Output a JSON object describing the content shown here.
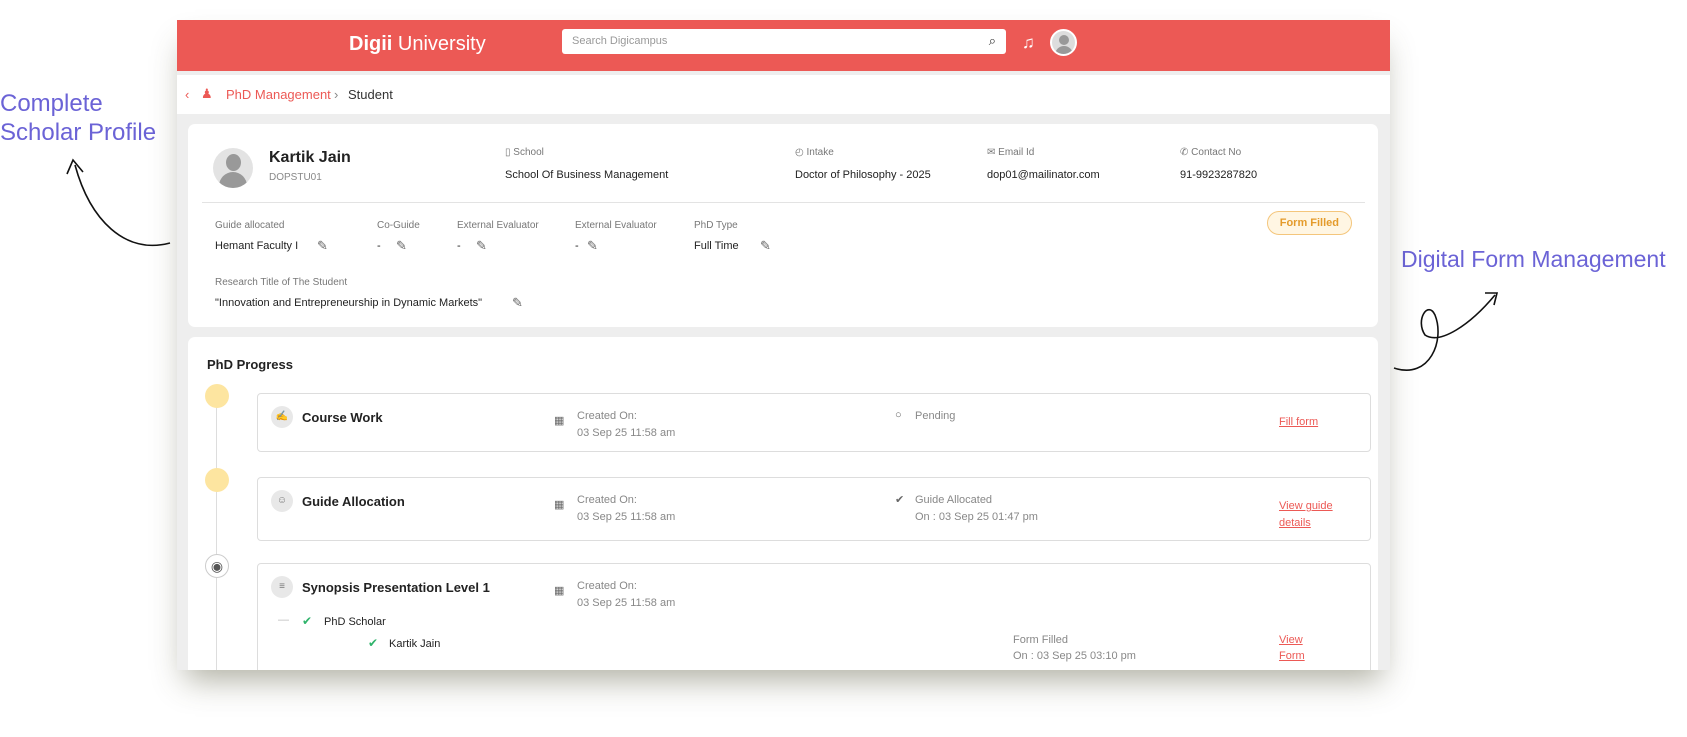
{
  "annotations": {
    "left": "Complete Scholar Profile",
    "right": "Digital Form Management"
  },
  "header": {
    "logo_bold": "Digii",
    "logo_rest": " University",
    "search_placeholder": "Search Digicampus"
  },
  "breadcrumb": {
    "back": "‹",
    "items": [
      "PhD Management",
      "Student"
    ],
    "separator": "›"
  },
  "profile": {
    "name": "Kartik Jain",
    "id": "DOPSTU01",
    "fields": [
      {
        "label": "School",
        "value": "School Of Business Management"
      },
      {
        "label": "Intake",
        "value": "Doctor of Philosophy - 2025"
      },
      {
        "label": "Email Id",
        "value": "dop01@mailinator.com"
      },
      {
        "label": "Contact No",
        "value": "91-9923287820"
      }
    ],
    "assignments": [
      {
        "label": "Guide allocated",
        "value": "Hemant Faculty I"
      },
      {
        "label": "Co-Guide",
        "value": "-"
      },
      {
        "label": "External Evaluator",
        "value": "-"
      },
      {
        "label": "External Evaluator",
        "value": "-"
      },
      {
        "label": "PhD Type",
        "value": "Full Time"
      }
    ],
    "research_label": "Research Title of The Student",
    "research_title": "\"Innovation and Entrepreneurship in Dynamic Markets\"",
    "status_badge": "Form Filled"
  },
  "progress": {
    "title": "PhD Progress",
    "steps": [
      {
        "title": "Course Work",
        "created_label": "Created On:",
        "created": "03 Sep 25 11:58 am",
        "status": "Pending",
        "status_sub": "",
        "action": "Fill form"
      },
      {
        "title": "Guide Allocation",
        "created_label": "Created On:",
        "created": "03 Sep 25 11:58 am",
        "status": "Guide Allocated",
        "status_sub": "On : 03 Sep 25 01:47 pm",
        "action": "View guide details"
      },
      {
        "title": "Synopsis Presentation Level 1",
        "created_label": "Created On:",
        "created": "03 Sep 25 11:58 am",
        "sub_group": "PhD Scholar",
        "sub_person": "Kartik Jain",
        "status": "Form Filled",
        "status_sub": "On : 03 Sep 25 03:10 pm",
        "action": "View Form"
      }
    ]
  },
  "colors": {
    "brand": "#ec5955",
    "annotation": "#6b63d6",
    "badge": "#e49b2b",
    "timeline_dot": "#fde5a0"
  }
}
